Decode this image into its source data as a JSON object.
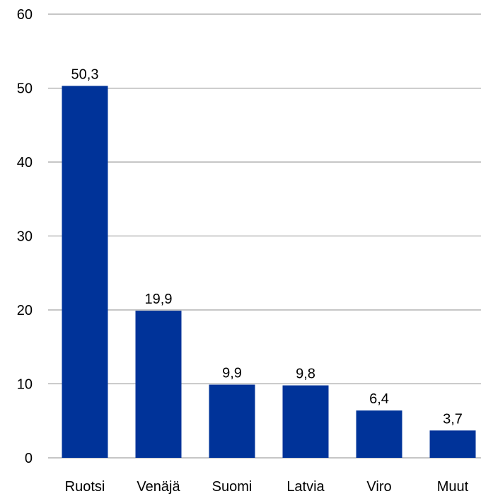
{
  "chart_data": {
    "type": "bar",
    "categories": [
      "Ruotsi",
      "Venäjä",
      "Suomi",
      "Latvia",
      "Viro",
      "Muut"
    ],
    "values": [
      50.3,
      19.9,
      9.9,
      9.8,
      6.4,
      3.7
    ],
    "value_labels": [
      "50,3",
      "19,9",
      "9,9",
      "9,8",
      "6,4",
      "3,7"
    ],
    "ylim": [
      0,
      60
    ],
    "yticks": [
      0,
      10,
      20,
      30,
      40,
      50,
      60
    ],
    "grid": true,
    "bar_color": "#003399",
    "title": "",
    "xlabel": "",
    "ylabel": ""
  }
}
